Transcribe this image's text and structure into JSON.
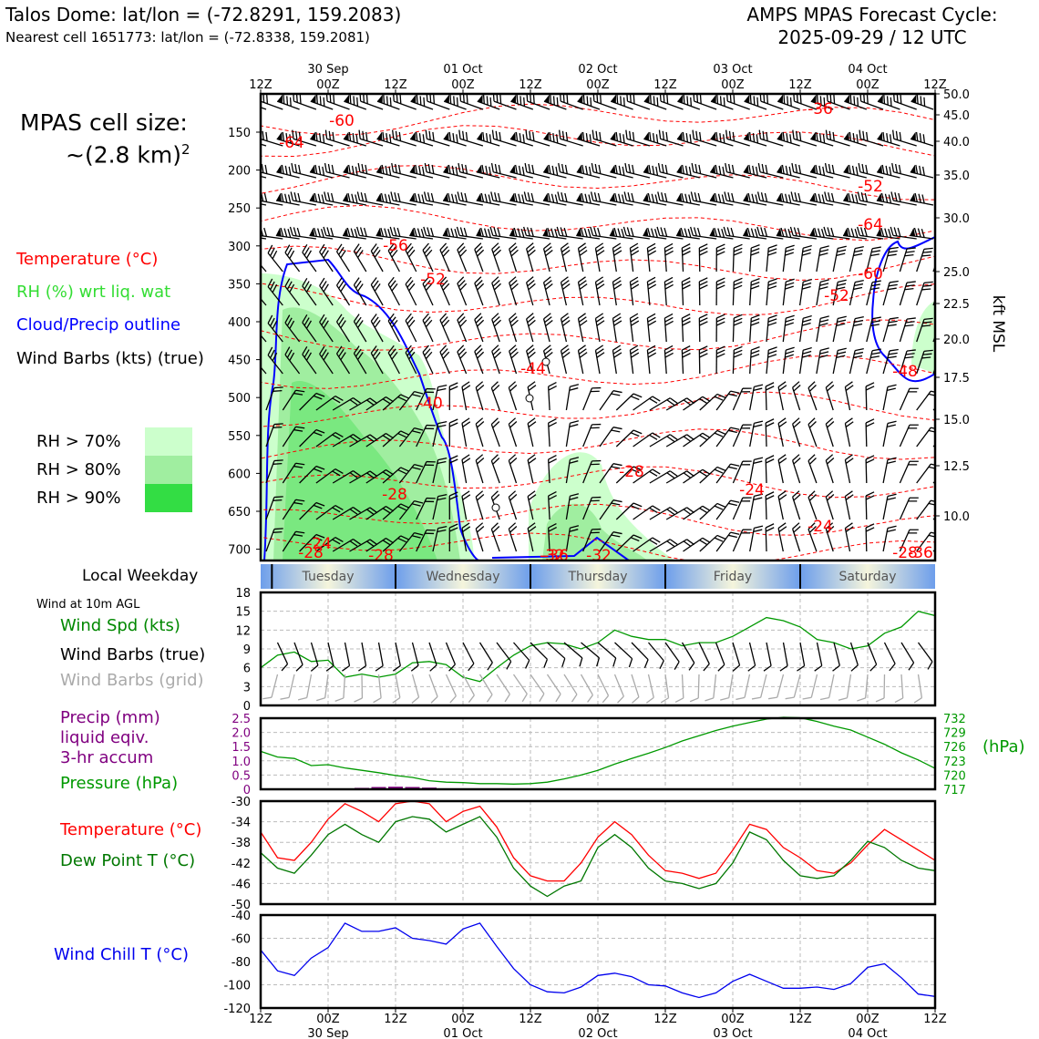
{
  "header": {
    "title_left": "Talos Dome: lat/lon = (-72.8291, 159.2083)",
    "subtitle_left": "Nearest cell 1651773: lat/lon = (-72.8338, 159.2081)",
    "title_right_1": "AMPS MPAS Forecast Cycle:",
    "title_right_2": "2025-09-29 / 12 UTC"
  },
  "cell_size": {
    "line1": "MPAS cell size:",
    "line2": "~(2.8 km)",
    "sup": "2"
  },
  "legend_upper": {
    "temperature": "Temperature (°C)",
    "rh": "RH (%) wrt liq. wat",
    "cloud": "Cloud/Precip outline",
    "wind": "Wind Barbs (kts) (true)",
    "rh70": "RH > 70%",
    "rh80": "RH > 80%",
    "rh90": "RH > 90%"
  },
  "colors": {
    "temperature": "#ff0000",
    "rh_label": "#33cc33",
    "cloud": "#0000ff",
    "rh70": "#ccffcc",
    "rh80": "#a0eea0",
    "rh90": "#33dd44",
    "pressure": "#009900",
    "dewpoint": "#007700",
    "precip": "#800080",
    "wind_chill": "#0000ee",
    "grid_barb": "#aaaaaa"
  },
  "time_axis": {
    "ticks": [
      "12Z",
      "00Z",
      "12Z",
      "00Z",
      "12Z",
      "00Z",
      "12Z",
      "00Z",
      "12Z",
      "00Z",
      "12Z"
    ],
    "dates": [
      "30 Sep",
      "01 Oct",
      "02 Oct",
      "03 Oct",
      "04 Oct"
    ]
  },
  "cross_section": {
    "y_label": "kft MSL",
    "pressure_ticks": [
      "150",
      "200",
      "250",
      "300",
      "350",
      "400",
      "450",
      "500",
      "550",
      "600",
      "650",
      "700"
    ],
    "kft_ticks": [
      "50.0",
      "45.0",
      "40.0",
      "35.0",
      "30.0",
      "25.0",
      "22.5",
      "20.0",
      "17.5",
      "15.0",
      "12.5",
      "10.0"
    ],
    "temp_labels": [
      "-60",
      "-64",
      "-56",
      "-52",
      "-44",
      "-40",
      "-28",
      "-24",
      "-28",
      "-28",
      "-36",
      "-32",
      "-32",
      "-28",
      "-24",
      "-24",
      "-28",
      "-36",
      "-48",
      "-52",
      "-60",
      "-64",
      "-52",
      "-36"
    ]
  },
  "weekday": {
    "label": "Local Weekday",
    "days": [
      "Tuesday",
      "Wednesday",
      "Thursday",
      "Friday",
      "Saturday"
    ]
  },
  "wind_panel": {
    "title": "Wind at 10m AGL",
    "spd_label": "Wind Spd (kts)",
    "barbs_true": "Wind Barbs (true)",
    "barbs_grid": "Wind Barbs (grid)",
    "y_ticks": [
      "18",
      "15",
      "12",
      "9",
      "6",
      "3",
      "0"
    ]
  },
  "precip_panel": {
    "precip_l1": "Precip (mm)",
    "precip_l2": "liquid eqiv.",
    "precip_l3": "3-hr accum",
    "pressure_label": "Pressure (hPa)",
    "hpa_unit": "(hPa)",
    "left_ticks": [
      "2.5",
      "2.0",
      "1.5",
      "1.0",
      "0.5",
      "0"
    ],
    "right_ticks": [
      "732",
      "729",
      "726",
      "723",
      "720",
      "717"
    ]
  },
  "temp_panel": {
    "temp_label": "Temperature (°C)",
    "dew_label": "Dew Point T (°C)",
    "y_ticks": [
      "-30",
      "-34",
      "-38",
      "-42",
      "-46",
      "-50"
    ]
  },
  "chill_panel": {
    "label": "Wind Chill T (°C)",
    "y_ticks": [
      "-40",
      "-60",
      "-80",
      "-100",
      "-120"
    ]
  },
  "chart_data": [
    {
      "type": "line",
      "title": "Wind at 10m AGL",
      "x_hours": [
        0,
        3,
        6,
        9,
        12,
        15,
        18,
        21,
        24,
        27,
        30,
        33,
        36,
        39,
        42,
        45,
        48,
        51,
        54,
        57,
        60,
        63,
        66,
        69,
        72,
        75,
        78,
        81,
        84,
        87,
        90,
        93,
        96,
        99,
        102,
        105,
        108,
        111,
        114,
        117,
        120
      ],
      "series": [
        {
          "name": "Wind Spd (kts)",
          "values": [
            6,
            8,
            8.5,
            7,
            7.2,
            4.5,
            5,
            4.5,
            5,
            6.8,
            7,
            6.5,
            4.5,
            3.8,
            6,
            8,
            9.5,
            10,
            9.8,
            9,
            10,
            12,
            11,
            10.5,
            10.5,
            9.5,
            10,
            10,
            11,
            12.5,
            14,
            13.5,
            12.5,
            10.5,
            10,
            9,
            9.5,
            11.5,
            12.5,
            15,
            14.3
          ]
        }
      ],
      "ylim": [
        0,
        18
      ]
    },
    {
      "type": "line",
      "title": "Pressure (hPa)",
      "x_hours": [
        0,
        3,
        6,
        9,
        12,
        15,
        18,
        21,
        24,
        27,
        30,
        33,
        36,
        39,
        42,
        45,
        48,
        51,
        54,
        57,
        60,
        63,
        66,
        69,
        72,
        75,
        78,
        81,
        84,
        87,
        90,
        93,
        96,
        99,
        102,
        105,
        108,
        111,
        114,
        117,
        120
      ],
      "series": [
        {
          "name": "Pressure (hPa)",
          "values": [
            725,
            723.8,
            723.5,
            722,
            722.2,
            721.5,
            721,
            720.5,
            719.9,
            719.5,
            718.8,
            718.5,
            718.4,
            718.2,
            718.2,
            718.1,
            718.2,
            718.5,
            719.2,
            720,
            721,
            722.3,
            723.5,
            724.6,
            725.8,
            727.2,
            728.3,
            729.4,
            730.3,
            731.1,
            731.8,
            732.2,
            732.1,
            731.3,
            730.3,
            729.5,
            728,
            726.5,
            724.7,
            723.2,
            721.4
          ]
        }
      ],
      "ylim": [
        717,
        732
      ]
    },
    {
      "type": "bar",
      "title": "Precip (mm) liquid eqiv. 3-hr accum",
      "x_hours": [
        18,
        21,
        24,
        27,
        30
      ],
      "values": [
        0.05,
        0.08,
        0.09,
        0.08,
        0.06
      ],
      "ylim": [
        0,
        2.5
      ]
    },
    {
      "type": "line",
      "title": "Temperature / Dew Point",
      "x_hours": [
        0,
        3,
        6,
        9,
        12,
        15,
        18,
        21,
        24,
        27,
        30,
        33,
        36,
        39,
        42,
        45,
        48,
        51,
        54,
        57,
        60,
        63,
        66,
        69,
        72,
        75,
        78,
        81,
        84,
        87,
        90,
        93,
        96,
        99,
        102,
        105,
        108,
        111,
        114,
        117,
        120
      ],
      "series": [
        {
          "name": "Temperature (°C)",
          "values": [
            -36,
            -41,
            -41.5,
            -38,
            -33.5,
            -30.5,
            -32,
            -34,
            -30.5,
            -30,
            -30.5,
            -34,
            -32,
            -31,
            -35,
            -41,
            -44.5,
            -45.5,
            -45.5,
            -42,
            -37,
            -34,
            -36.5,
            -40.5,
            -43.5,
            -44,
            -45,
            -44,
            -39.5,
            -34.5,
            -35.5,
            -39,
            -41,
            -43.5,
            -44,
            -42,
            -38.5,
            -35.5,
            -37.5,
            -39.5,
            -41.5
          ],
          "color": "#ff0000"
        },
        {
          "name": "Dew Point T (°C)",
          "values": [
            -40,
            -43,
            -44,
            -40.5,
            -36.5,
            -34.5,
            -36.5,
            -38,
            -34,
            -33,
            -33.5,
            -36,
            -34.5,
            -33,
            -37,
            -43,
            -46.5,
            -48.5,
            -46.5,
            -45.5,
            -39,
            -36.5,
            -39,
            -43,
            -45.5,
            -46,
            -47,
            -46,
            -42,
            -36,
            -37.5,
            -41.5,
            -44.5,
            -45,
            -44.5,
            -41.5,
            -37.8,
            -39,
            -41.5,
            -43,
            -43.5
          ],
          "color": "#007700"
        }
      ],
      "ylim": [
        -50,
        -30
      ]
    },
    {
      "type": "line",
      "title": "Wind Chill T (°C)",
      "x_hours": [
        0,
        3,
        6,
        9,
        12,
        15,
        18,
        21,
        24,
        27,
        30,
        33,
        36,
        39,
        42,
        45,
        48,
        51,
        54,
        57,
        60,
        63,
        66,
        69,
        72,
        75,
        78,
        81,
        84,
        87,
        90,
        93,
        96,
        99,
        102,
        105,
        108,
        111,
        114,
        117,
        120
      ],
      "series": [
        {
          "name": "Wind Chill T (°C)",
          "values": [
            -70,
            -88,
            -92,
            -77,
            -68,
            -47,
            -54,
            -54,
            -51,
            -60,
            -62,
            -65,
            -52,
            -47,
            -67,
            -86,
            -100,
            -106,
            -107,
            -102,
            -92,
            -90,
            -93,
            -100,
            -101,
            -107,
            -111,
            -107,
            -97,
            -91,
            -97,
            -103,
            -103,
            -102,
            -104,
            -99,
            -85,
            -82,
            -94,
            -108,
            -110
          ],
          "color": "#0000ee"
        }
      ],
      "ylim": [
        -120,
        -40
      ]
    }
  ]
}
